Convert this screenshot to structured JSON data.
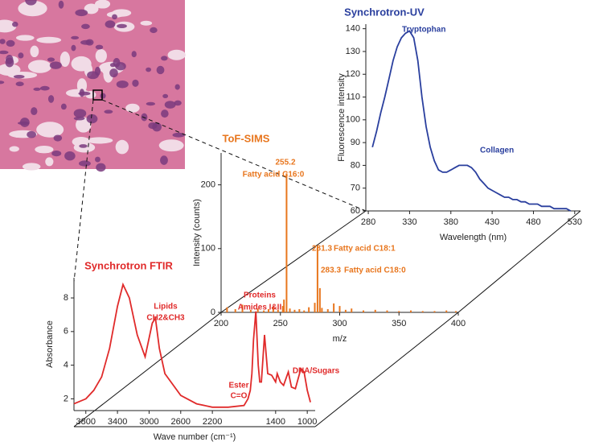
{
  "chart_data": [
    {
      "type": "line",
      "title": "Synchrotron-UV",
      "xlabel": "Wavelength (nm)",
      "ylabel": "Fluorescence intensity",
      "annotations": [
        "Tryptophan",
        "Collagen"
      ],
      "x": [
        285,
        290,
        295,
        300,
        305,
        310,
        315,
        320,
        325,
        330,
        335,
        340,
        345,
        350,
        355,
        360,
        365,
        370,
        375,
        380,
        385,
        390,
        395,
        400,
        405,
        410,
        415,
        420,
        425,
        430,
        435,
        440,
        445,
        450,
        455,
        460,
        465,
        470,
        475,
        480,
        485,
        490,
        495,
        500,
        505,
        510,
        515,
        520,
        525
      ],
      "values": [
        88,
        95,
        103,
        110,
        118,
        126,
        132,
        136,
        138,
        139,
        136,
        126,
        110,
        97,
        88,
        82,
        78,
        77,
        77,
        78,
        79,
        80,
        80,
        80,
        79,
        77,
        74,
        72,
        70,
        69,
        68,
        67,
        66,
        66,
        65,
        65,
        64,
        64,
        63,
        63,
        63,
        62,
        62,
        62,
        61,
        61,
        61,
        61,
        60
      ],
      "color": "#2a3f9e",
      "xlim": [
        277,
        537
      ],
      "ylim": [
        60,
        142
      ],
      "xticks": [
        280,
        330,
        380,
        430,
        480,
        530
      ],
      "yticks": [
        60,
        70,
        80,
        90,
        100,
        110,
        120,
        130,
        140
      ]
    },
    {
      "type": "bar",
      "title": "ToF-SIMS",
      "xlabel": "m/z",
      "ylabel": "Intensity (counts)",
      "annotations": [
        "255.2",
        "Fatty acid  C16:0",
        "281.3",
        "Fatty acid C18:1",
        "283.3",
        "Fatty acid C18:0"
      ],
      "x": [
        205,
        212,
        218,
        225,
        231,
        236,
        240,
        244,
        248,
        252,
        253,
        255.2,
        258,
        262,
        266,
        270,
        274,
        279,
        281.3,
        283.3,
        285,
        290,
        295,
        300,
        305,
        310,
        320,
        330,
        340,
        350,
        360,
        370,
        380,
        390,
        398
      ],
      "values": [
        8,
        5,
        12,
        4,
        6,
        3,
        5,
        9,
        4,
        10,
        20,
        218,
        6,
        4,
        5,
        3,
        8,
        15,
        105,
        38,
        7,
        5,
        14,
        10,
        4,
        6,
        3,
        4,
        3,
        2,
        3,
        2,
        2,
        3,
        2
      ],
      "color": "#e8761e",
      "xlim": [
        200,
        400
      ],
      "ylim": [
        0,
        250
      ],
      "xticks": [
        200,
        250,
        300,
        350,
        400
      ],
      "yticks": [
        0,
        100,
        200
      ]
    },
    {
      "type": "line",
      "title": "Synchrotron FTIR",
      "xlabel": "Wave number (cm⁻¹)",
      "ylabel": "Absorbance",
      "annotations": [
        "Lipids",
        "CH2&CH3",
        "Proteins",
        "Amides I&II",
        "Ester",
        "C=O",
        "DNA/Sugars"
      ],
      "x": [
        3950,
        3800,
        3700,
        3600,
        3500,
        3400,
        3330,
        3250,
        3150,
        3050,
        2960,
        2920,
        2870,
        2800,
        2600,
        2400,
        2200,
        2000,
        1800,
        1750,
        1720,
        1700,
        1680,
        1650,
        1620,
        1600,
        1580,
        1540,
        1500,
        1450,
        1400,
        1380,
        1340,
        1300,
        1240,
        1200,
        1150,
        1080,
        1040,
        1000,
        960
      ],
      "values": [
        1.7,
        2.0,
        2.5,
        3.3,
        5.0,
        7.5,
        8.8,
        8.0,
        5.8,
        4.5,
        6.5,
        6.8,
        5.0,
        3.5,
        2.2,
        1.7,
        1.5,
        1.5,
        1.6,
        2.0,
        2.5,
        3.5,
        5.5,
        7.2,
        4.0,
        3.0,
        3.0,
        5.8,
        3.5,
        3.4,
        3.0,
        3.5,
        3.0,
        2.8,
        3.6,
        2.7,
        2.6,
        3.8,
        3.6,
        2.5,
        1.8
      ],
      "color": "#e02a2a",
      "xlim": [
        3950,
        900
      ],
      "ylim": [
        1.3,
        9.2
      ],
      "xticks": [
        3800,
        3400,
        3000,
        2600,
        2200,
        1400,
        1000
      ],
      "yticks": [
        2,
        4,
        6,
        8
      ]
    }
  ]
}
